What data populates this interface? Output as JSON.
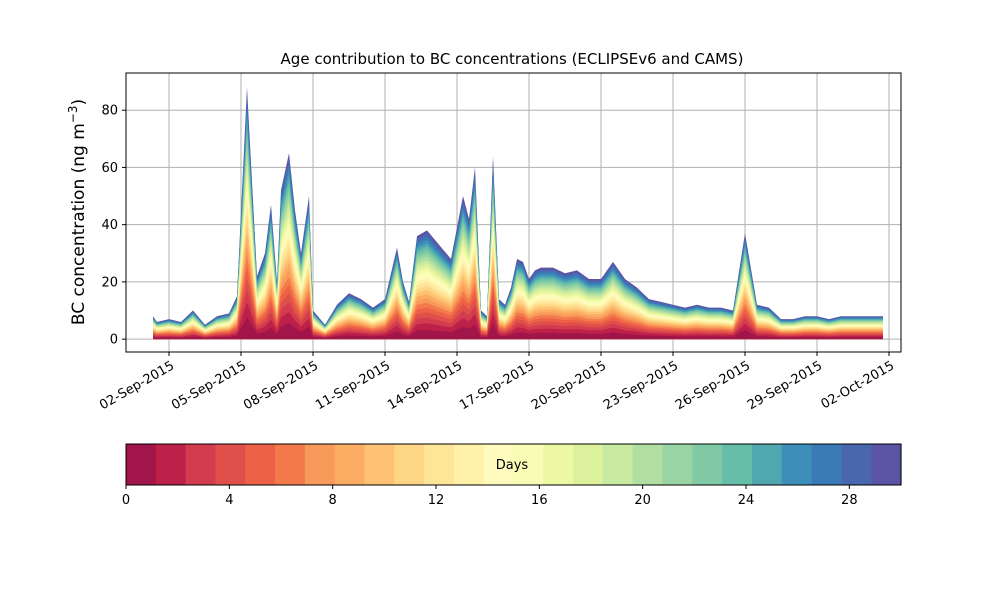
{
  "chart_data": {
    "type": "area",
    "title": "Age contribution to BC concentrations (ECLIPSEv6 and CAMS)",
    "ylabel_main": "BC concentration (ng m",
    "ylabel_sup": "−3",
    "ylabel_end": ")",
    "xlabel": "",
    "grid": true,
    "ylim": [
      -4.5,
      93
    ],
    "xlim": [
      "2015-08-31T05:00",
      "2015-10-02T12:00"
    ],
    "yticks": [
      0,
      20,
      40,
      60,
      80
    ],
    "xticks": [
      {
        "date": "2015-09-02",
        "label": "02-Sep-2015"
      },
      {
        "date": "2015-09-05",
        "label": "05-Sep-2015"
      },
      {
        "date": "2015-09-08",
        "label": "08-Sep-2015"
      },
      {
        "date": "2015-09-11",
        "label": "11-Sep-2015"
      },
      {
        "date": "2015-09-14",
        "label": "14-Sep-2015"
      },
      {
        "date": "2015-09-17",
        "label": "17-Sep-2015"
      },
      {
        "date": "2015-09-20",
        "label": "20-Sep-2015"
      },
      {
        "date": "2015-09-23",
        "label": "23-Sep-2015"
      },
      {
        "date": "2015-09-26",
        "label": "26-Sep-2015"
      },
      {
        "date": "2015-09-29",
        "label": "29-Sep-2015"
      },
      {
        "date": "2015-10-02",
        "label": "02-Oct-2015"
      }
    ],
    "series_note_total": "Stacked area of BC concentration by age class (days); outer envelope = total",
    "total": {
      "x": [
        "2015-09-01T08:00",
        "2015-09-01T12:00",
        "2015-09-02T00:00",
        "2015-09-02T12:00",
        "2015-09-03T00:00",
        "2015-09-03T12:00",
        "2015-09-04T00:00",
        "2015-09-04T12:00",
        "2015-09-04T20:00",
        "2015-09-05T06:00",
        "2015-09-05T16:00",
        "2015-09-06T00:00",
        "2015-09-06T06:00",
        "2015-09-06T12:00",
        "2015-09-06T16:00",
        "2015-09-07T00:00",
        "2015-09-07T06:00",
        "2015-09-07T12:00",
        "2015-09-07T20:00",
        "2015-09-08T00:00",
        "2015-09-08T12:00",
        "2015-09-09T00:00",
        "2015-09-09T12:00",
        "2015-09-10T00:00",
        "2015-09-10T12:00",
        "2015-09-11T00:00",
        "2015-09-11T12:00",
        "2015-09-11T18:00",
        "2015-09-12T00:00",
        "2015-09-12T08:00",
        "2015-09-12T18:00",
        "2015-09-13T06:00",
        "2015-09-13T18:00",
        "2015-09-14T06:00",
        "2015-09-14T12:00",
        "2015-09-14T18:00",
        "2015-09-15T00:00",
        "2015-09-15T06:00",
        "2015-09-15T12:00",
        "2015-09-15T18:00",
        "2015-09-16T00:00",
        "2015-09-16T06:00",
        "2015-09-16T12:00",
        "2015-09-16T18:00",
        "2015-09-17T00:00",
        "2015-09-17T06:00",
        "2015-09-17T12:00",
        "2015-09-18T00:00",
        "2015-09-18T12:00",
        "2015-09-19T00:00",
        "2015-09-19T12:00",
        "2015-09-20T00:00",
        "2015-09-20T12:00",
        "2015-09-21T00:00",
        "2015-09-21T12:00",
        "2015-09-22T00:00",
        "2015-09-22T12:00",
        "2015-09-23T00:00",
        "2015-09-23T12:00",
        "2015-09-24T00:00",
        "2015-09-24T12:00",
        "2015-09-25T00:00",
        "2015-09-25T12:00",
        "2015-09-26T00:00",
        "2015-09-26T12:00",
        "2015-09-27T00:00",
        "2015-09-27T12:00",
        "2015-09-28T00:00",
        "2015-09-28T12:00",
        "2015-09-29T00:00",
        "2015-09-29T12:00",
        "2015-09-30T00:00",
        "2015-09-30T12:00",
        "2015-10-01T00:00",
        "2015-10-01T12:00",
        "2015-10-01T18:00"
      ],
      "y": [
        8,
        6,
        7,
        6,
        10,
        5,
        8,
        9,
        15,
        88,
        22,
        30,
        47,
        20,
        52,
        65,
        45,
        30,
        50,
        10,
        5,
        12,
        16,
        14,
        11,
        14,
        32,
        20,
        13,
        36,
        38,
        33,
        28,
        50,
        42,
        60,
        10,
        8,
        64,
        14,
        12,
        18,
        28,
        27,
        21,
        24,
        25,
        25,
        23,
        24,
        21,
        21,
        27,
        21,
        18,
        14,
        13,
        12,
        11,
        12,
        11,
        11,
        10,
        37,
        12,
        11,
        7,
        7,
        8,
        8,
        7,
        8,
        8,
        8,
        8,
        8
      ]
    },
    "colorbar": {
      "label": "Days",
      "range": [
        0,
        30
      ],
      "ticks": [
        0,
        4,
        8,
        12,
        16,
        20,
        24,
        28
      ],
      "colors": [
        "#a2154a",
        "#bd2149",
        "#d23c4e",
        "#e0504a",
        "#ec6148",
        "#f47a4b",
        "#f89a59",
        "#fbad64",
        "#fdc273",
        "#fed685",
        "#fee598",
        "#fff1a8",
        "#fffbbe",
        "#f8fcb4",
        "#edf8a3",
        "#dcf19c",
        "#c7e9a0",
        "#b1dfa2",
        "#98d4a4",
        "#7fcaa5",
        "#66bda8",
        "#4fa7b0",
        "#3d8fba",
        "#3a7bb7",
        "#4967ae",
        "#5b54a4"
      ]
    }
  }
}
